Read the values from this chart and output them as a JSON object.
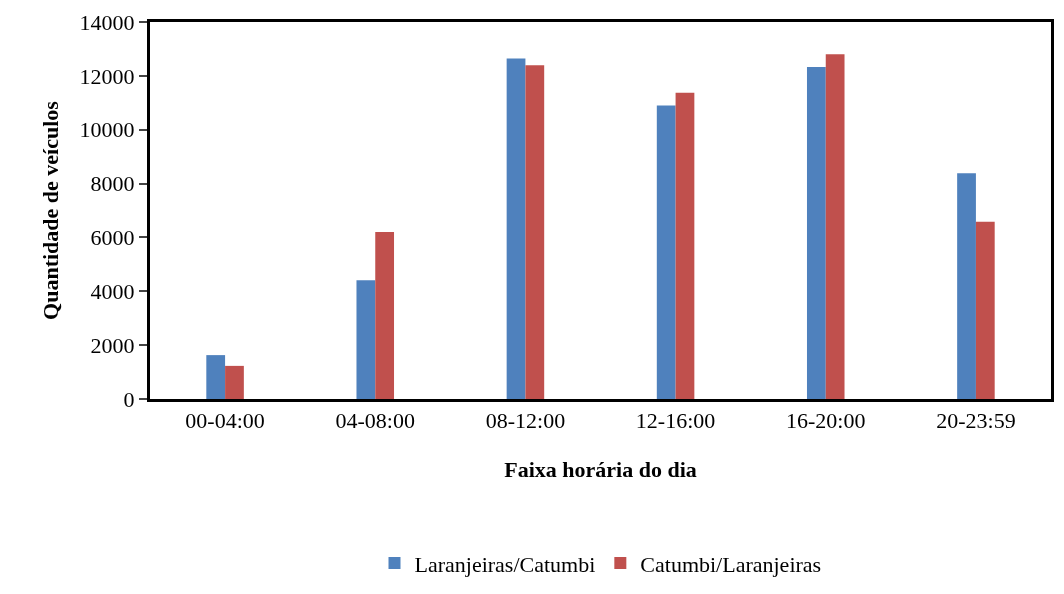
{
  "chart_data": {
    "type": "bar",
    "xlabel": "Faixa horária do dia",
    "ylabel": "Quantidade de veículos",
    "categories": [
      "00-04:00",
      "04-08:00",
      "08-12:00",
      "12-16:00",
      "16-20:00",
      "20-23:59"
    ],
    "series": [
      {
        "name": "Laranjeiras/Catumbi",
        "color": "#4f81bd",
        "values": [
          1630,
          4410,
          12640,
          10900,
          12330,
          8380
        ]
      },
      {
        "name": "Catumbi/Laranjeiras",
        "color": "#c0504d",
        "values": [
          1230,
          6200,
          12390,
          11370,
          12800,
          6580
        ]
      }
    ],
    "ylim": [
      0,
      14000
    ],
    "yticks": [
      0,
      2000,
      4000,
      6000,
      8000,
      10000,
      12000,
      14000
    ],
    "legend": "bottom"
  }
}
